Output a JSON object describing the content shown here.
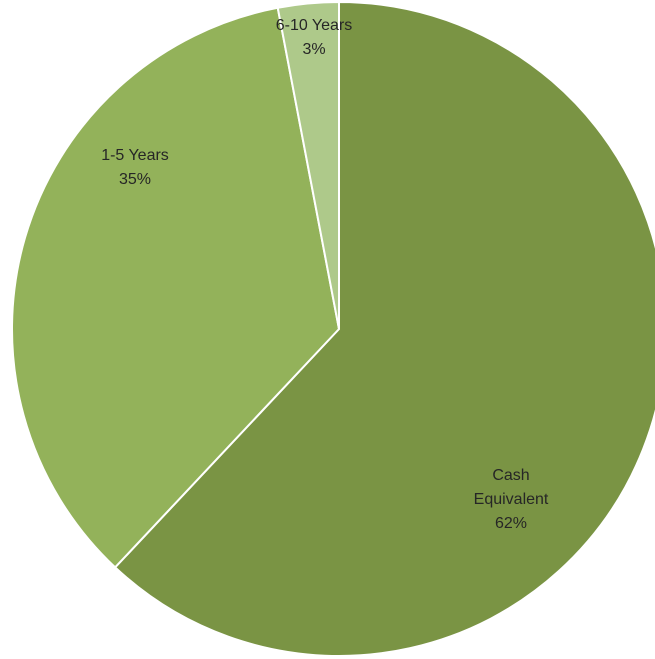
{
  "chart_data": {
    "type": "pie",
    "title": "",
    "slices": [
      {
        "name": "Cash Equivalent",
        "label_lines": [
          "Cash",
          "Equivalent",
          "62%"
        ],
        "value": 62,
        "color": "#7a9444"
      },
      {
        "name": "1-5 Years",
        "label_lines": [
          "1-5 Years",
          "35%"
        ],
        "value": 35,
        "color": "#93b25a"
      },
      {
        "name": "6-10 Years",
        "label_lines": [
          "6-10 Years",
          "3%"
        ],
        "value": 3,
        "color": "#aec98a"
      }
    ],
    "start_angle_deg": 0,
    "direction": "clockwise",
    "border_color": "#ffffff",
    "legend": "none"
  }
}
